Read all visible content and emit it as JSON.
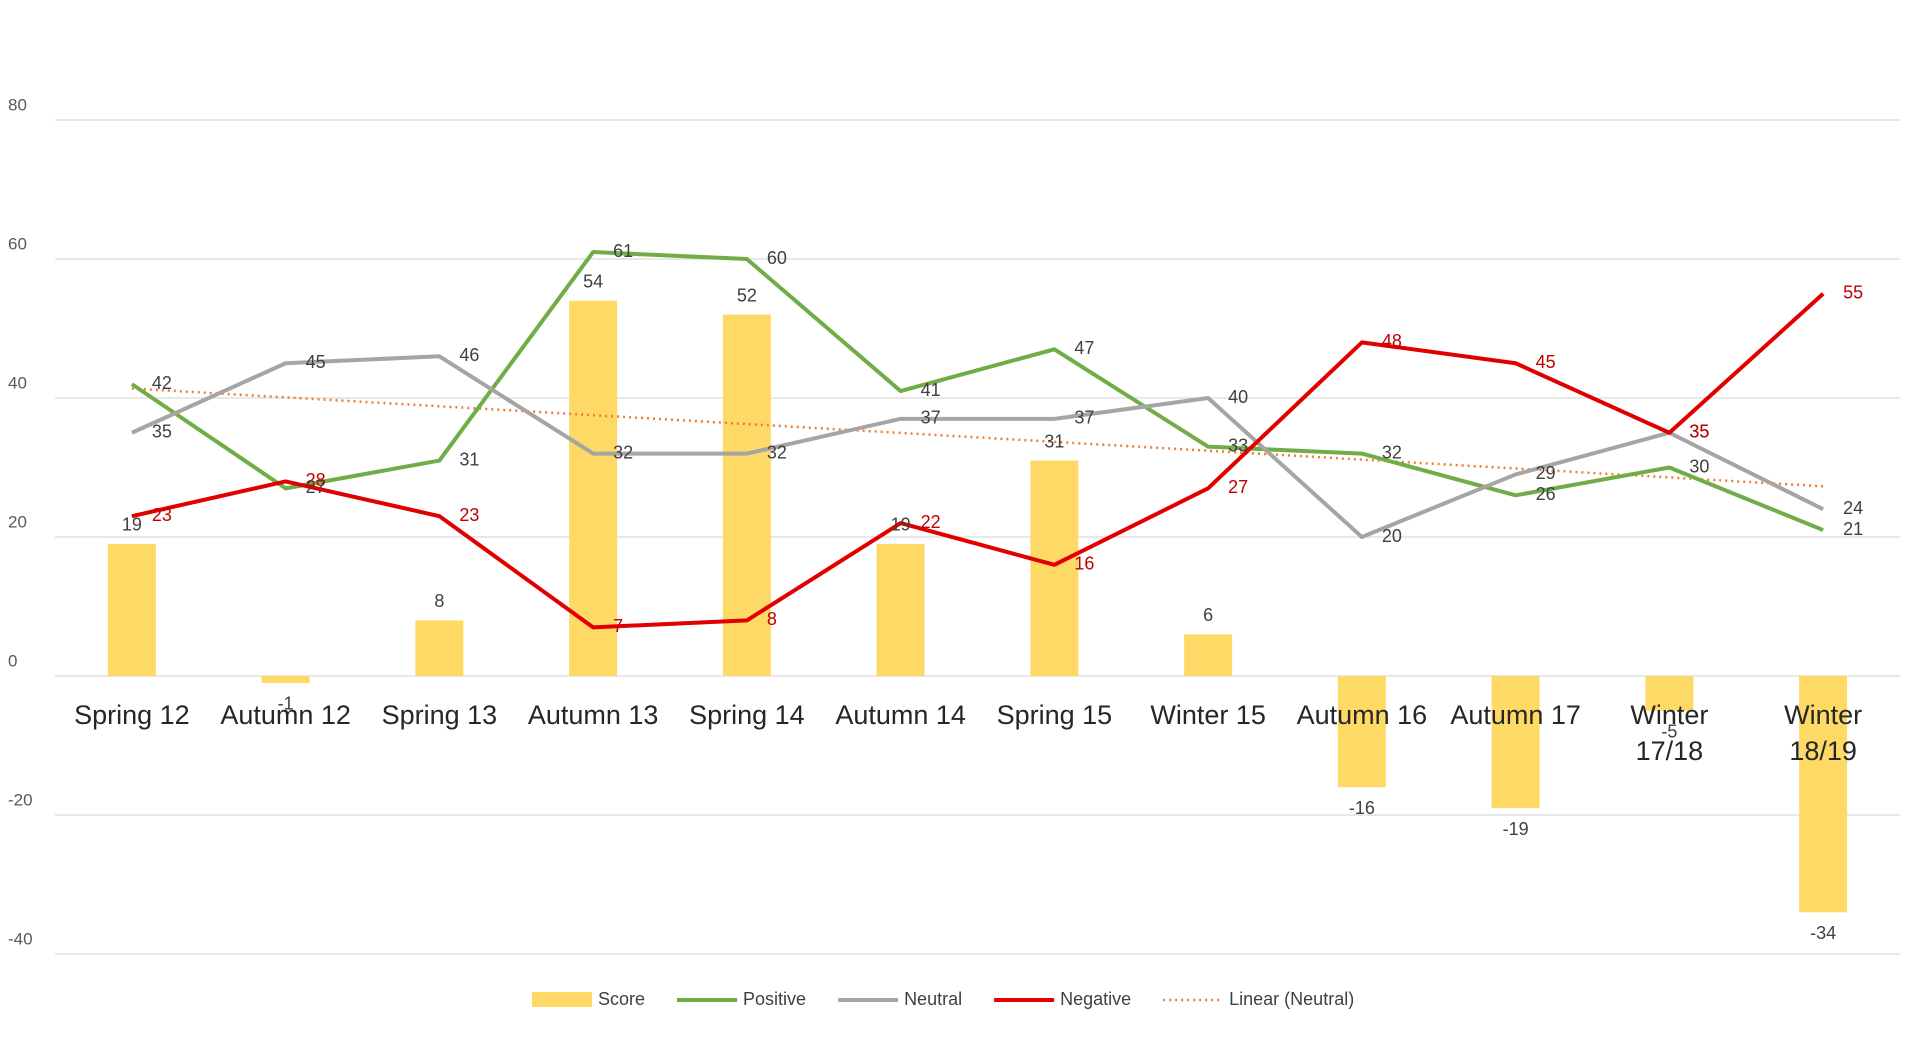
{
  "chart_data": {
    "type": "bar-line",
    "categories": [
      "Spring 12",
      "Autumn 12",
      "Spring 13",
      "Autumn 13",
      "Spring 14",
      "Autumn 14",
      "Spring 15",
      "Winter 15",
      "Autumn 16",
      "Autumn 17",
      "Winter 17/18",
      "Winter 18/19"
    ],
    "series": [
      {
        "name": "Score",
        "type": "bar",
        "color": "#ffd966",
        "label_color": "#404040",
        "values": [
          19,
          -1,
          8,
          54,
          52,
          19,
          31,
          6,
          -16,
          -19,
          -5,
          -34
        ]
      },
      {
        "name": "Positive",
        "type": "line",
        "color": "#70ad47",
        "label_color": "#404040",
        "values": [
          42,
          27,
          31,
          61,
          60,
          41,
          47,
          33,
          32,
          26,
          30,
          21
        ]
      },
      {
        "name": "Neutral",
        "type": "line",
        "color": "#a5a5a5",
        "label_color": "#404040",
        "values": [
          35,
          45,
          46,
          32,
          32,
          37,
          37,
          40,
          20,
          29,
          35,
          24
        ]
      },
      {
        "name": "Negative",
        "type": "line",
        "color": "#e00000",
        "label_color": "#c00000",
        "values": [
          23,
          28,
          23,
          7,
          8,
          22,
          16,
          27,
          48,
          45,
          35,
          55
        ]
      }
    ],
    "trendline": {
      "name": "Linear (Neutral)",
      "kind": "linear",
      "of": "Neutral",
      "color": "#ed7d31",
      "style": "dotted"
    },
    "ylim": [
      -40,
      80
    ],
    "yticks": [
      -40,
      -20,
      0,
      20,
      40,
      60,
      80
    ],
    "grid": true,
    "legend": "bottom"
  }
}
